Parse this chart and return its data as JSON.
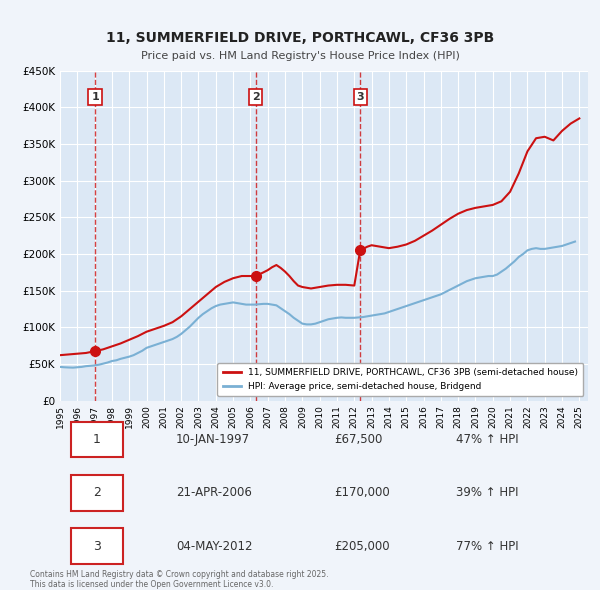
{
  "title": "11, SUMMERFIELD DRIVE, PORTHCAWL, CF36 3PB",
  "subtitle": "Price paid vs. HM Land Registry's House Price Index (HPI)",
  "background_color": "#f0f4fa",
  "plot_background": "#dce8f5",
  "grid_color": "#ffffff",
  "sale_color": "#cc1111",
  "hpi_color": "#7ab0d4",
  "sale_dot_color": "#cc1111",
  "vline_color": "#cc1111",
  "ylim": [
    0,
    450000
  ],
  "yticks": [
    0,
    50000,
    100000,
    150000,
    200000,
    250000,
    300000,
    350000,
    400000,
    450000
  ],
  "ytick_labels": [
    "£0",
    "£50K",
    "£100K",
    "£150K",
    "£200K",
    "£250K",
    "£300K",
    "£350K",
    "£400K",
    "£450K"
  ],
  "xlim_start": 1995.0,
  "xlim_end": 2025.5,
  "xticks": [
    1995,
    1996,
    1997,
    1998,
    1999,
    2000,
    2001,
    2002,
    2003,
    2004,
    2005,
    2006,
    2007,
    2008,
    2009,
    2010,
    2011,
    2012,
    2013,
    2014,
    2015,
    2016,
    2017,
    2018,
    2019,
    2020,
    2021,
    2022,
    2023,
    2024,
    2025
  ],
  "legend_sale": "11, SUMMERFIELD DRIVE, PORTHCAWL, CF36 3PB (semi-detached house)",
  "legend_hpi": "HPI: Average price, semi-detached house, Bridgend",
  "transactions": [
    {
      "num": 1,
      "date_dec": 1997.03,
      "price": 67500,
      "label": "1",
      "vline_x": 1997.03
    },
    {
      "num": 2,
      "date_dec": 2006.31,
      "price": 170000,
      "label": "2",
      "vline_x": 2006.31
    },
    {
      "num": 3,
      "date_dec": 2012.34,
      "price": 205000,
      "label": "3",
      "vline_x": 2012.34
    }
  ],
  "table_rows": [
    {
      "num": "1",
      "date": "10-JAN-1997",
      "price": "£67,500",
      "hpi": "47% ↑ HPI"
    },
    {
      "num": "2",
      "date": "21-APR-2006",
      "price": "£170,000",
      "hpi": "39% ↑ HPI"
    },
    {
      "num": "3",
      "date": "04-MAY-2012",
      "price": "£205,000",
      "hpi": "77% ↑ HPI"
    }
  ],
  "footnote": "Contains HM Land Registry data © Crown copyright and database right 2025.\nThis data is licensed under the Open Government Licence v3.0.",
  "hpi_data": {
    "years": [
      1995.0,
      1995.25,
      1995.5,
      1995.75,
      1996.0,
      1996.25,
      1996.5,
      1996.75,
      1997.0,
      1997.25,
      1997.5,
      1997.75,
      1998.0,
      1998.25,
      1998.5,
      1998.75,
      1999.0,
      1999.25,
      1999.5,
      1999.75,
      2000.0,
      2000.25,
      2000.5,
      2000.75,
      2001.0,
      2001.25,
      2001.5,
      2001.75,
      2002.0,
      2002.25,
      2002.5,
      2002.75,
      2003.0,
      2003.25,
      2003.5,
      2003.75,
      2004.0,
      2004.25,
      2004.5,
      2004.75,
      2005.0,
      2005.25,
      2005.5,
      2005.75,
      2006.0,
      2006.25,
      2006.5,
      2006.75,
      2007.0,
      2007.25,
      2007.5,
      2007.75,
      2008.0,
      2008.25,
      2008.5,
      2008.75,
      2009.0,
      2009.25,
      2009.5,
      2009.75,
      2010.0,
      2010.25,
      2010.5,
      2010.75,
      2011.0,
      2011.25,
      2011.5,
      2011.75,
      2012.0,
      2012.25,
      2012.5,
      2012.75,
      2013.0,
      2013.25,
      2013.5,
      2013.75,
      2014.0,
      2014.25,
      2014.5,
      2014.75,
      2015.0,
      2015.25,
      2015.5,
      2015.75,
      2016.0,
      2016.25,
      2016.5,
      2016.75,
      2017.0,
      2017.25,
      2017.5,
      2017.75,
      2018.0,
      2018.25,
      2018.5,
      2018.75,
      2019.0,
      2019.25,
      2019.5,
      2019.75,
      2020.0,
      2020.25,
      2020.5,
      2020.75,
      2021.0,
      2021.25,
      2021.5,
      2021.75,
      2022.0,
      2022.25,
      2022.5,
      2022.75,
      2023.0,
      2023.25,
      2023.5,
      2023.75,
      2024.0,
      2024.25,
      2024.5,
      2024.75
    ],
    "values": [
      46000,
      45500,
      45200,
      45000,
      45500,
      46000,
      47000,
      47500,
      48000,
      49000,
      50500,
      52000,
      54000,
      55000,
      57000,
      58500,
      60000,
      62000,
      65000,
      68000,
      72000,
      74000,
      76000,
      78000,
      80000,
      82000,
      84000,
      87000,
      91000,
      96000,
      101000,
      107000,
      113000,
      118000,
      122000,
      126000,
      129000,
      131000,
      132000,
      133000,
      134000,
      133000,
      132000,
      131000,
      131000,
      131000,
      131500,
      132000,
      132000,
      131000,
      130000,
      126000,
      122000,
      118000,
      113000,
      109000,
      105000,
      104000,
      104000,
      105000,
      107000,
      109000,
      111000,
      112000,
      113000,
      113500,
      113000,
      113000,
      113000,
      113500,
      114000,
      115000,
      116000,
      117000,
      118000,
      119000,
      121000,
      123000,
      125000,
      127000,
      129000,
      131000,
      133000,
      135000,
      137000,
      139000,
      141000,
      143000,
      145000,
      148000,
      151000,
      154000,
      157000,
      160000,
      163000,
      165000,
      167000,
      168000,
      169000,
      170000,
      170000,
      172000,
      176000,
      180000,
      185000,
      190000,
      196000,
      200000,
      205000,
      207000,
      208000,
      207000,
      207000,
      208000,
      209000,
      210000,
      211000,
      213000,
      215000,
      217000
    ]
  },
  "sale_line_data": {
    "years": [
      1995.0,
      1995.5,
      1996.0,
      1996.5,
      1997.03,
      1997.5,
      1998.0,
      1998.5,
      1999.0,
      1999.5,
      2000.0,
      2000.5,
      2001.0,
      2001.5,
      2002.0,
      2002.5,
      2003.0,
      2003.5,
      2004.0,
      2004.5,
      2005.0,
      2005.5,
      2006.0,
      2006.31,
      2006.75,
      2007.0,
      2007.25,
      2007.5,
      2007.75,
      2008.0,
      2008.25,
      2008.5,
      2008.75,
      2009.0,
      2009.5,
      2010.0,
      2010.5,
      2011.0,
      2011.5,
      2012.0,
      2012.34,
      2012.75,
      2013.0,
      2013.5,
      2014.0,
      2014.5,
      2015.0,
      2015.5,
      2016.0,
      2016.5,
      2017.0,
      2017.5,
      2018.0,
      2018.5,
      2019.0,
      2019.5,
      2020.0,
      2020.5,
      2021.0,
      2021.5,
      2022.0,
      2022.5,
      2023.0,
      2023.5,
      2024.0,
      2024.5,
      2025.0
    ],
    "values": [
      62000,
      63000,
      64000,
      65000,
      67500,
      70000,
      74000,
      78000,
      83000,
      88000,
      94000,
      98000,
      102000,
      107000,
      115000,
      125000,
      135000,
      145000,
      155000,
      162000,
      167000,
      170000,
      170000,
      170000,
      175000,
      178000,
      182000,
      185000,
      181000,
      176000,
      170000,
      163000,
      157000,
      155000,
      153000,
      155000,
      157000,
      158000,
      158000,
      157000,
      205000,
      210000,
      212000,
      210000,
      208000,
      210000,
      213000,
      218000,
      225000,
      232000,
      240000,
      248000,
      255000,
      260000,
      263000,
      265000,
      267000,
      272000,
      285000,
      310000,
      340000,
      358000,
      360000,
      355000,
      368000,
      378000,
      385000
    ]
  }
}
